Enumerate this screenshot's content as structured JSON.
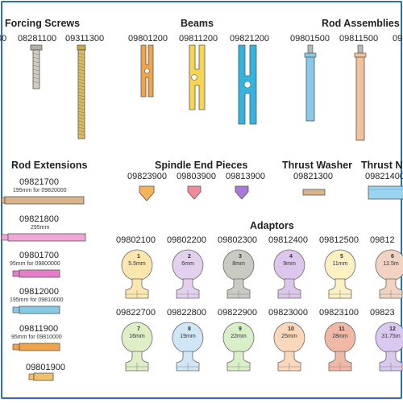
{
  "sections": {
    "forcing_screws": {
      "title": "Forcing Screws",
      "codes": [
        "00",
        "08281100",
        "09311300"
      ]
    },
    "beams": {
      "title": "Beams",
      "codes": [
        "09801200",
        "09811200",
        "09821200"
      ]
    },
    "rod_assemblies": {
      "title": "Rod Assemblies",
      "codes": [
        "09801500",
        "09811500",
        "09"
      ]
    },
    "rod_extensions": {
      "title": "Rod Extensions",
      "items": [
        {
          "code": "09821700",
          "note": "195mm for 09820000"
        },
        {
          "code": "09821800",
          "note": "295mm"
        },
        {
          "code": "09801700",
          "note": "95mm for 09800000"
        },
        {
          "code": "09812000",
          "note": "195mm for 09810000"
        },
        {
          "code": "09811900",
          "note": "95mm for 09810000"
        },
        {
          "code": "09801900",
          "note": ""
        }
      ]
    },
    "spindle_end_pieces": {
      "title": "Spindle End Pieces",
      "codes": [
        "09823900",
        "09803900",
        "09813900"
      ]
    },
    "thrust_washer": {
      "title": "Thrust Washer",
      "code": "09821300"
    },
    "thrust_nut": {
      "title": "Thrust Nu",
      "code": "09821400"
    },
    "adaptors": {
      "title": "Adaptors",
      "row1": [
        {
          "code": "09802100",
          "num": "1",
          "size": "5.5mm",
          "color": "#fbe6ad"
        },
        {
          "code": "09802200",
          "num": "2",
          "size": "6mm",
          "color": "#e3d0ef"
        },
        {
          "code": "09802300",
          "num": "3",
          "size": "8mm",
          "color": "#c9cbc3"
        },
        {
          "code": "09812400",
          "num": "4",
          "size": "9mm",
          "color": "#dcc6ec"
        },
        {
          "code": "09812500",
          "num": "5",
          "size": "11mm",
          "color": "#fdf1c3"
        },
        {
          "code": "09812",
          "num": "6",
          "size": "12.5m",
          "color": "#f2d2c0"
        }
      ],
      "row2": [
        {
          "code": "09822700",
          "num": "7",
          "size": "16mm",
          "color": "#dfeec4"
        },
        {
          "code": "09822800",
          "num": "8",
          "size": "19mm",
          "color": "#cfe6f7"
        },
        {
          "code": "09822900",
          "num": "9",
          "size": "22mm",
          "color": "#d8efc8"
        },
        {
          "code": "09823000",
          "num": "10",
          "size": "25mm",
          "color": "#fbd7bb"
        },
        {
          "code": "09823100",
          "num": "11",
          "size": "28mm",
          "color": "#f0b9a6"
        },
        {
          "code": "09823",
          "num": "12",
          "size": "31.75m",
          "color": "#d9c8ef"
        }
      ]
    }
  },
  "colors": {
    "frame": "#2d6fb3",
    "beam_orange": "#f0a44a",
    "beam_yellow": "#f7d552",
    "beam_blue": "#33b3e0",
    "screw_grey": "#c8c2b5",
    "screw_gold": "#d4b75e",
    "rod_blue": "#88c8e8",
    "rod_peach": "#f3c29a",
    "ext_tan": "#d9b48a",
    "ext_pink": "#f3a6d6",
    "ext_magenta": "#e67dc8",
    "ext_cyan": "#86c9e6",
    "ext_orange": "#f0a44a",
    "ext_gold": "#f3c06a",
    "spindle_orange": "#f7b25a",
    "spindle_pink": "#f08a9a",
    "spindle_purple": "#a879d8",
    "washer_tan": "#d9b48a",
    "nut_blue": "#9bd4f0"
  }
}
